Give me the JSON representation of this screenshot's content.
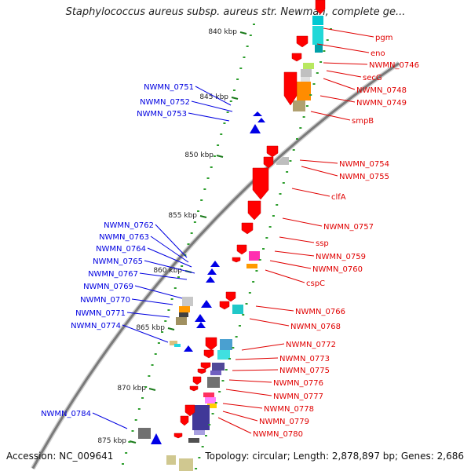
{
  "title": "Staphylococcus aureus subsp. aureus str. Newman, complete ge...",
  "footer": {
    "accession": "Accession: NC_009641",
    "topology": "Topology: circular; Length: 2,878,897 bp; Genes: 2,686"
  },
  "colors": {
    "backbone": "#7a7a7a",
    "plus_strand": "#ff0000",
    "minus_strand": "#0000e6",
    "tick_major": "#1a7a1a",
    "tick_minor": "#2e9e2e",
    "plus_label": "#e00000",
    "minus_label": "#0000e0"
  },
  "ruler": [
    {
      "label": "840 kbp"
    },
    {
      "label": "845 kbp"
    },
    {
      "label": "850 kbp"
    },
    {
      "label": "855 kbp"
    },
    {
      "label": "860 kbp"
    },
    {
      "label": "865 kbp"
    },
    {
      "label": "870 kbp"
    },
    {
      "label": "875 kbp"
    }
  ],
  "plus_genes": [
    {
      "name": "pgm"
    },
    {
      "name": "eno"
    },
    {
      "name": "NWMN_0746"
    },
    {
      "name": "secG"
    },
    {
      "name": "NWMN_0748"
    },
    {
      "name": "NWMN_0749"
    },
    {
      "name": "smpB"
    },
    {
      "name": "NWMN_0754"
    },
    {
      "name": "NWMN_0755"
    },
    {
      "name": "clfA"
    },
    {
      "name": "NWMN_0757"
    },
    {
      "name": "ssp"
    },
    {
      "name": "NWMN_0759"
    },
    {
      "name": "NWMN_0760"
    },
    {
      "name": "cspC"
    },
    {
      "name": "NWMN_0766"
    },
    {
      "name": "NWMN_0768"
    },
    {
      "name": "NWMN_0772"
    },
    {
      "name": "NWMN_0773"
    },
    {
      "name": "NWMN_0775"
    },
    {
      "name": "NWMN_0776"
    },
    {
      "name": "NWMN_0777"
    },
    {
      "name": "NWMN_0778"
    },
    {
      "name": "NWMN_0779"
    },
    {
      "name": "NWMN_0780"
    }
  ],
  "minus_genes": [
    {
      "name": "NWMN_0751"
    },
    {
      "name": "NWMN_0752"
    },
    {
      "name": "NWMN_0753"
    },
    {
      "name": "NWMN_0762"
    },
    {
      "name": "NWMN_0763"
    },
    {
      "name": "NWMN_0764"
    },
    {
      "name": "NWMN_0765"
    },
    {
      "name": "NWMN_0767"
    },
    {
      "name": "NWMN_0769"
    },
    {
      "name": "NWMN_0770"
    },
    {
      "name": "NWMN_0771"
    },
    {
      "name": "NWMN_0774"
    },
    {
      "name": "NWMN_0784"
    }
  ]
}
